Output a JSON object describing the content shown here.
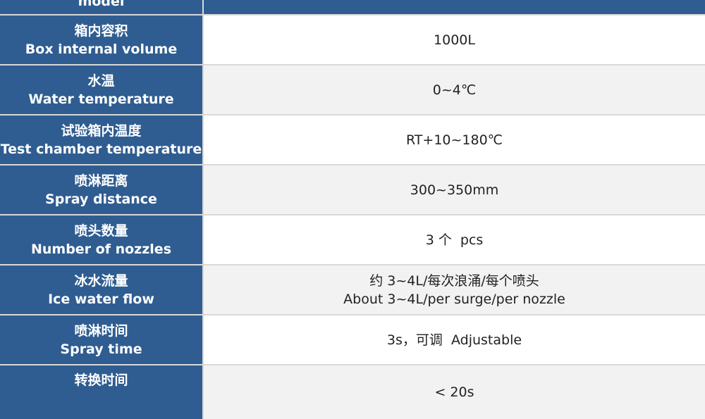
{
  "rows": [
    {
      "zh": "",
      "en": "model",
      "value": []
    },
    {
      "zh": "箱内容积",
      "en": "Box internal volume",
      "value": [
        "1000L"
      ]
    },
    {
      "zh": "水温",
      "en": "Water temperature",
      "value": [
        "0~4℃"
      ]
    },
    {
      "zh": "试验箱内温度",
      "en": "Test chamber temperature",
      "value": [
        "RT+10~180℃"
      ]
    },
    {
      "zh": "喷淋距离",
      "en": "Spray distance",
      "value": [
        "300~350mm"
      ]
    },
    {
      "zh": "喷头数量",
      "en": "Number of nozzles",
      "value": [
        "3 个  pcs"
      ]
    },
    {
      "zh": "冰水流量",
      "en": "Ice water flow",
      "value": [
        "约 3~4L/每次浪涌/每个喷头",
        "About 3~4L/per surge/per nozzle"
      ]
    },
    {
      "zh": "喷淋时间",
      "en": "Spray time",
      "value": [
        "3s，可调  Adjustable"
      ]
    },
    {
      "zh": "转换时间",
      "en": "",
      "value": [
        "< 20s"
      ]
    }
  ],
  "colors": {
    "label_bg": "#2f5d91",
    "row_white": "#ffffff",
    "row_gray": "#f2f2f2"
  }
}
